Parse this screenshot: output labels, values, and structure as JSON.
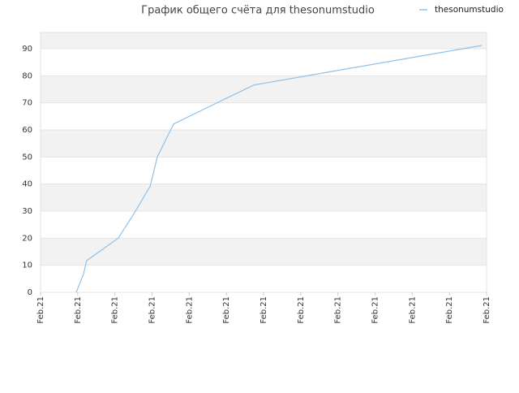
{
  "chart_data": {
    "type": "line",
    "title": "График общего счёта для thesonumstudio",
    "x": [
      0.96,
      1.16,
      1.24,
      2.09,
      2.51,
      2.95,
      3.14,
      3.58,
      4.97,
      5.74,
      11.87
    ],
    "series": [
      {
        "name": "thesonumstudio",
        "color": "#8ec1ea",
        "values": [
          0,
          6.9,
          11.7,
          20,
          29,
          39.2,
          50,
          62.2,
          71.5,
          76.6,
          91.2
        ]
      }
    ],
    "xlim": [
      0,
      12
    ],
    "xticks": [
      {
        "value": 0,
        "label": "Feb.21"
      },
      {
        "value": 1,
        "label": "Feb.21"
      },
      {
        "value": 2,
        "label": "Feb.21"
      },
      {
        "value": 3,
        "label": "Feb.21"
      },
      {
        "value": 4,
        "label": "Feb.21"
      },
      {
        "value": 5,
        "label": "Feb.21"
      },
      {
        "value": 6,
        "label": "Feb.21"
      },
      {
        "value": 7,
        "label": "Feb.21"
      },
      {
        "value": 8,
        "label": "Feb.21"
      },
      {
        "value": 9,
        "label": "Feb.21"
      },
      {
        "value": 10,
        "label": "Feb.21"
      },
      {
        "value": 11,
        "label": "Feb.21"
      },
      {
        "value": 12,
        "label": "Feb.21"
      }
    ],
    "ylim": [
      0,
      96
    ],
    "yticks": [
      0,
      10,
      20,
      30,
      40,
      50,
      60,
      70,
      80,
      90
    ],
    "grid": true,
    "legend": "top-right"
  }
}
